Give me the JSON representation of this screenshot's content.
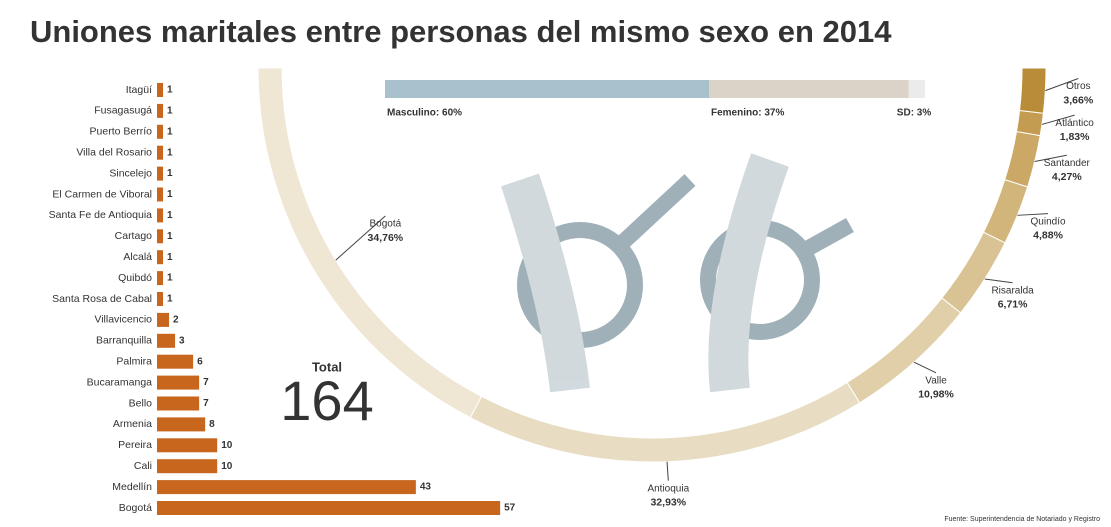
{
  "title": "Uniones maritales entre personas del mismo sexo en 2014",
  "source": "Fuente: Superintendencia de Notariado y Registro",
  "total": {
    "label": "Total",
    "value": 164
  },
  "chart_data": [
    {
      "type": "bar",
      "orientation": "horizontal",
      "color": "#c8661e",
      "categories": [
        "Itagüí",
        "Fusagasugá",
        "Puerto Berrío",
        "Villa del Rosario",
        "Sincelejo",
        "El Carmen de Viboral",
        "Santa Fe de Antioquia",
        "Cartago",
        "Alcalá",
        "Quibdó",
        "Santa Rosa de Cabal",
        "Villavicencio",
        "Barranquilla",
        "Palmira",
        "Bucaramanga",
        "Bello",
        "Armenia",
        "Pereira",
        "Cali",
        "Medellín",
        "Bogotá"
      ],
      "values": [
        1,
        1,
        1,
        1,
        1,
        1,
        1,
        1,
        1,
        1,
        1,
        2,
        3,
        6,
        7,
        7,
        8,
        10,
        10,
        43,
        57
      ]
    },
    {
      "type": "semi-donut",
      "categories": [
        "Bogotá",
        "Antioquia",
        "Valle",
        "Risaralda",
        "Quindío",
        "Santander",
        "Atlántico",
        "Otros"
      ],
      "values": [
        34.76,
        32.93,
        10.98,
        6.71,
        4.88,
        4.27,
        1.83,
        3.66
      ],
      "value_labels": [
        "34,76%",
        "32,93%",
        "10,98%",
        "6,71%",
        "4,88%",
        "4,27%",
        "1,83%",
        "3,66%"
      ],
      "colors": [
        "#efe6d3",
        "#e8dcc2",
        "#e0cfa9",
        "#d9c394",
        "#d2b57b",
        "#cba865",
        "#c39c51",
        "#b98d38"
      ]
    },
    {
      "type": "stacked-bar",
      "categories": [
        "Masculino: 60%",
        "Femenino: 37%",
        "SD: 3%"
      ],
      "values": [
        60,
        37,
        3
      ],
      "colors": [
        "#a9c0cd",
        "#dcd3c8",
        "#ebebeb"
      ]
    }
  ]
}
